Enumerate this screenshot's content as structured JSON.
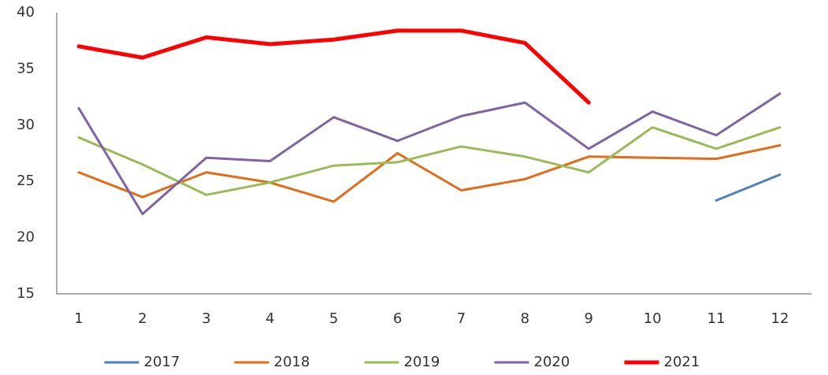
{
  "chart_data": {
    "type": "line",
    "categories": [
      "1",
      "2",
      "3",
      "4",
      "5",
      "6",
      "7",
      "8",
      "9",
      "10",
      "11",
      "12"
    ],
    "series": [
      {
        "name": "2017",
        "color": "#4f81bd",
        "line_width": 3,
        "values": [
          null,
          null,
          null,
          null,
          null,
          null,
          null,
          null,
          null,
          null,
          23.3,
          25.6
        ]
      },
      {
        "name": "2018",
        "color": "#e36c1a",
        "line_width": 3,
        "values": [
          25.8,
          23.6,
          25.8,
          24.9,
          23.2,
          27.5,
          24.2,
          25.2,
          27.2,
          27.1,
          27.0,
          28.2
        ]
      },
      {
        "name": "2019",
        "color": "#9bbb59",
        "line_width": 3,
        "values": [
          28.9,
          26.5,
          23.8,
          24.9,
          26.4,
          26.7,
          28.1,
          27.2,
          25.8,
          29.8,
          27.9,
          29.8
        ]
      },
      {
        "name": "2020",
        "color": "#8064a2",
        "line_width": 3,
        "values": [
          31.5,
          22.1,
          27.1,
          26.8,
          30.7,
          28.6,
          30.8,
          32.0,
          27.9,
          31.2,
          29.1,
          32.8
        ]
      },
      {
        "name": "2021",
        "color": "#ff0000",
        "line_width": 5,
        "values": [
          37.0,
          36.0,
          37.8,
          37.2,
          37.6,
          38.4,
          38.4,
          37.3,
          32.0,
          null,
          null,
          null
        ]
      }
    ],
    "ylim": [
      15,
      40
    ],
    "yticks": [
      15,
      20,
      25,
      30,
      35,
      40
    ],
    "grid": false,
    "legend": "bottom"
  }
}
